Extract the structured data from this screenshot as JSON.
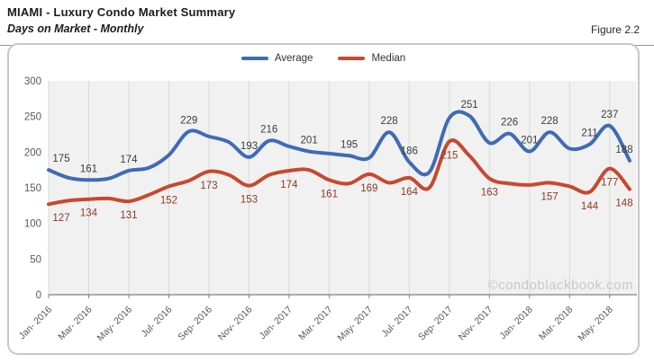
{
  "header": {
    "title": "MIAMI - Luxury Condo Market Summary",
    "subtitle": "Days on Market - Monthly",
    "figure_label": "Figure 2.2"
  },
  "watermark": "©condoblackbook.com",
  "colors": {
    "average_line": "#3F6BB5",
    "median_line": "#C7492F",
    "average_label": "#3d3d3d",
    "median_label": "#8B3A26",
    "plot_background": "#f1f1f1",
    "gridline": "#d9d9d9",
    "axis_line": "#808080",
    "axis_text": "#595959",
    "watermark_text": "#c9c9c9"
  },
  "chart_data": {
    "type": "line",
    "title": "Days on Market - Monthly",
    "xlabel": "",
    "ylabel": "",
    "ylim": [
      0,
      300
    ],
    "y_ticks": [
      0,
      50,
      100,
      150,
      200,
      250,
      300
    ],
    "grid": "vertical-only",
    "legend_position": "top-center",
    "x_tick_labels": [
      "Jan- 2016",
      "Mar- 2016",
      "May- 2016",
      "Jul- 2016",
      "Sep- 2016",
      "Nov- 2016",
      "Jan- 2017",
      "Mar- 2017",
      "May- 2017",
      "Jul- 2017",
      "Sep- 2017",
      "Nov- 2017",
      "Jan- 2018",
      "Mar- 2018",
      "May- 2018"
    ],
    "months": [
      "Jan- 2016",
      "Feb- 2016",
      "Mar- 2016",
      "Apr- 2016",
      "May- 2016",
      "Jun- 2016",
      "Jul- 2016",
      "Aug- 2016",
      "Sep- 2016",
      "Oct- 2016",
      "Nov- 2016",
      "Dec- 2016",
      "Jan- 2017",
      "Feb- 2017",
      "Mar- 2017",
      "Apr- 2017",
      "May- 2017",
      "Jun- 2017",
      "Jul- 2017",
      "Aug- 2017",
      "Sep- 2017",
      "Oct- 2017",
      "Nov- 2017",
      "Dec- 2017",
      "Jan- 2018",
      "Feb- 2018",
      "Mar- 2018",
      "Apr- 2018",
      "May- 2018",
      "Jun- 2018"
    ],
    "series": [
      {
        "name": "Average",
        "values": [
          175,
          164,
          161,
          163,
          174,
          178,
          196,
          229,
          222,
          214,
          193,
          216,
          208,
          201,
          198,
          195,
          192,
          228,
          186,
          172,
          248,
          251,
          213,
          226,
          201,
          228,
          205,
          211,
          237,
          188
        ],
        "point_labels": [
          175,
          null,
          161,
          null,
          174,
          null,
          null,
          229,
          null,
          null,
          193,
          216,
          null,
          201,
          null,
          195,
          null,
          228,
          186,
          null,
          null,
          251,
          null,
          226,
          201,
          228,
          null,
          211,
          237,
          188
        ],
        "label_side": "above"
      },
      {
        "name": "Median",
        "values": [
          127,
          132,
          134,
          135,
          131,
          140,
          152,
          160,
          173,
          168,
          153,
          168,
          174,
          175,
          161,
          156,
          169,
          157,
          164,
          150,
          215,
          195,
          163,
          156,
          154,
          157,
          152,
          144,
          177,
          148
        ],
        "point_labels": [
          127,
          null,
          134,
          null,
          131,
          null,
          152,
          null,
          173,
          null,
          153,
          null,
          174,
          null,
          161,
          null,
          169,
          null,
          164,
          null,
          215,
          null,
          163,
          null,
          null,
          157,
          null,
          144,
          177,
          148
        ],
        "label_side": "below"
      }
    ]
  }
}
